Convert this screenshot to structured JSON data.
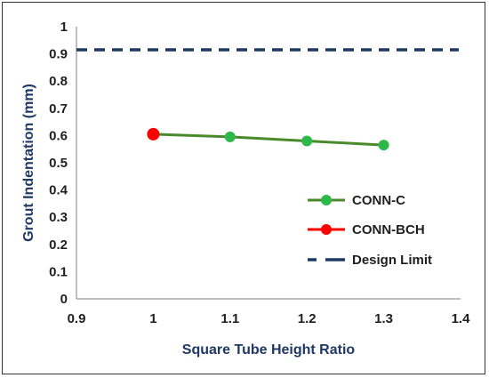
{
  "chart_data": {
    "type": "line",
    "xlabel": "Square Tube Height Ratio",
    "ylabel": "Grout Indentation (mm)",
    "xlim": [
      0.9,
      1.4
    ],
    "ylim": [
      0,
      1
    ],
    "xticks": [
      "0.9",
      "1",
      "1.1",
      "1.2",
      "1.3",
      "1.4"
    ],
    "yticks": [
      "0",
      "0.1",
      "0.2",
      "0.3",
      "0.4",
      "0.5",
      "0.6",
      "0.7",
      "0.8",
      "0.9",
      "1"
    ],
    "grid": false,
    "legend_position": "right",
    "series": [
      {
        "name": "CONN-C",
        "color": "#4a8a2a",
        "marker_color": "#2db84a",
        "style": "solid-line-with-circles",
        "x": [
          1.0,
          1.1,
          1.2,
          1.3
        ],
        "y": [
          0.605,
          0.595,
          0.58,
          0.565
        ]
      },
      {
        "name": "CONN-BCH",
        "color": "#ff0000",
        "marker_color": "#ff0000",
        "style": "marker",
        "x": [
          1.0
        ],
        "y": [
          0.605
        ]
      },
      {
        "name": "Design Limit",
        "color": "#1f3864",
        "style": "dashed-horizontal",
        "y": [
          0.915
        ]
      }
    ]
  }
}
